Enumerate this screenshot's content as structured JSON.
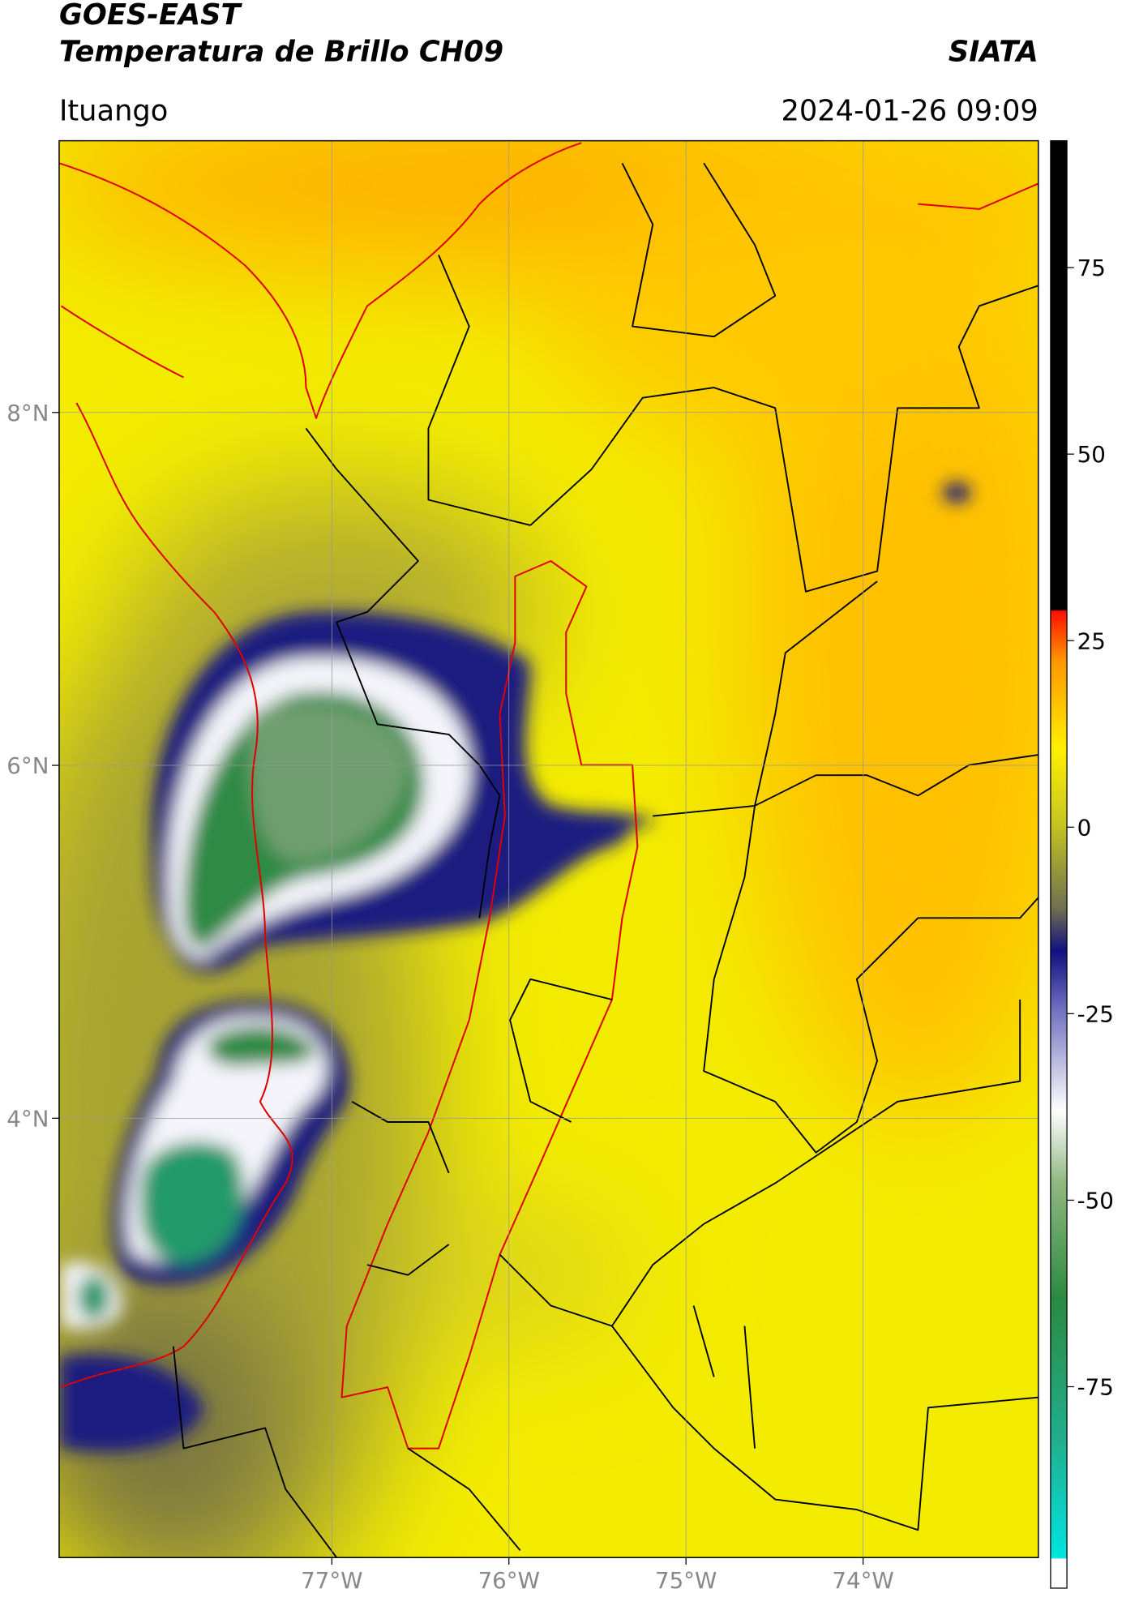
{
  "header": {
    "title_line1": "GOES-EAST",
    "title_line2": "Temperatura de Brillo CH09",
    "organization": "SIATA",
    "location": "Ituango",
    "timestamp": "2024-01-26 09:09"
  },
  "map": {
    "xlim": [
      -78.54,
      -73.01
    ],
    "ylim": [
      1.51,
      9.54
    ],
    "xticks": [
      {
        "value": -77,
        "label": "77°W"
      },
      {
        "value": -76,
        "label": "76°W"
      },
      {
        "value": -75,
        "label": "75°W"
      },
      {
        "value": -74,
        "label": "74°W"
      }
    ],
    "yticks": [
      {
        "value": 8,
        "label": "8°N"
      },
      {
        "value": 6,
        "label": "6°N"
      },
      {
        "value": 4,
        "label": "4°N"
      }
    ],
    "grid": true
  },
  "colorbar": {
    "lim": [
      -102,
      92
    ],
    "ticks": [
      -75,
      -50,
      -25,
      0,
      25,
      50,
      75
    ]
  }
}
